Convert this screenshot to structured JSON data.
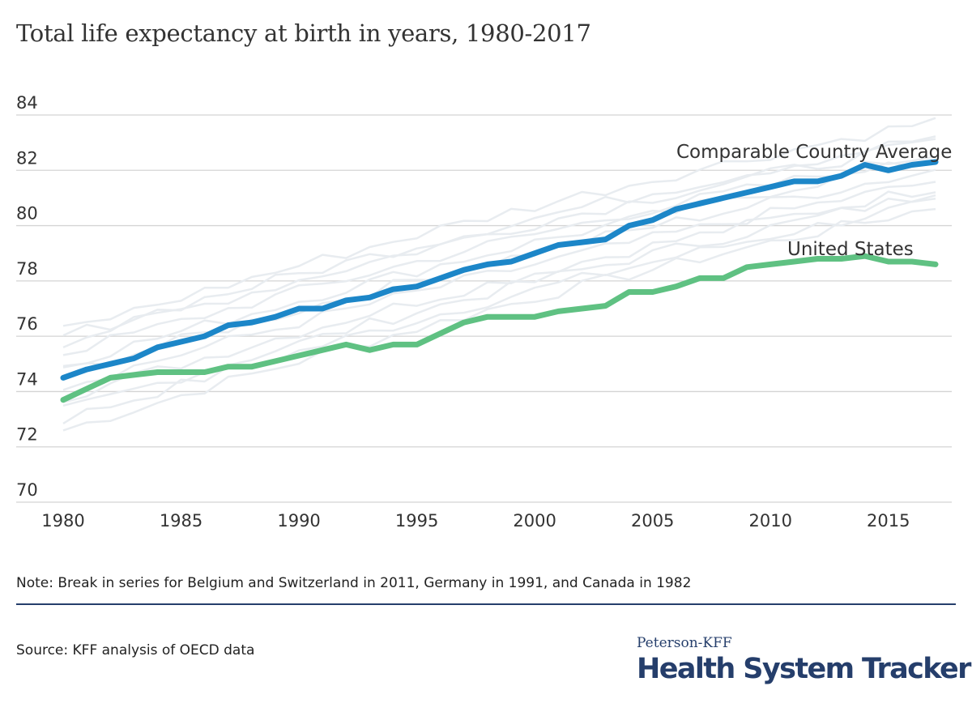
{
  "colors": {
    "comparable": "#1c86c8",
    "us": "#5fc182",
    "other_countries": "#e8ecf0",
    "grid": "#d4d4d4",
    "brand": "#253e6b"
  },
  "footer": {
    "note": "Note: Break in series for Belgium and Switzerland in 2011, Germany in 1991, and Canada in 1982",
    "source": "Source: KFF analysis of OECD data",
    "brand_top": "Peterson-KFF",
    "brand_main": "Health System Tracker"
  },
  "chart_data": {
    "type": "line",
    "title": "Total life expectancy at birth in years, 1980-2017",
    "xlabel": "",
    "ylabel": "",
    "x": [
      1980,
      1981,
      1982,
      1983,
      1984,
      1985,
      1986,
      1987,
      1988,
      1989,
      1990,
      1991,
      1992,
      1993,
      1994,
      1995,
      1996,
      1997,
      1998,
      1999,
      2000,
      2001,
      2002,
      2003,
      2004,
      2005,
      2006,
      2007,
      2008,
      2009,
      2010,
      2011,
      2012,
      2013,
      2014,
      2015,
      2016,
      2017
    ],
    "xlim": [
      1980,
      2017
    ],
    "ylim": [
      70,
      84
    ],
    "x_ticks": [
      "1980",
      "1985",
      "1990",
      "1995",
      "2000",
      "2005",
      "2010",
      "2015"
    ],
    "y_ticks": [
      "70",
      "72",
      "74",
      "76",
      "78",
      "80",
      "82",
      "84"
    ],
    "grid": true,
    "series": [
      {
        "name": "Comparable Country Average",
        "label": "Comparable Country Average",
        "values": [
          74.5,
          74.8,
          75.0,
          75.2,
          75.6,
          75.8,
          76.0,
          76.4,
          76.5,
          76.7,
          77.0,
          77.0,
          77.3,
          77.4,
          77.7,
          77.8,
          78.1,
          78.4,
          78.6,
          78.7,
          79.0,
          79.3,
          79.4,
          79.5,
          80.0,
          80.2,
          80.6,
          80.8,
          81.0,
          81.2,
          81.4,
          81.6,
          81.6,
          81.8,
          82.2,
          82.0,
          82.2,
          82.3
        ]
      },
      {
        "name": "United States",
        "label": "United States",
        "values": [
          73.7,
          74.1,
          74.5,
          74.6,
          74.7,
          74.7,
          74.7,
          74.9,
          74.9,
          75.1,
          75.3,
          75.5,
          75.7,
          75.5,
          75.7,
          75.7,
          76.1,
          76.5,
          76.7,
          76.7,
          76.7,
          76.9,
          77.0,
          77.1,
          77.6,
          77.6,
          77.8,
          78.1,
          78.1,
          78.5,
          78.6,
          78.7,
          78.8,
          78.8,
          78.9,
          78.7,
          78.7,
          78.6
        ]
      }
    ],
    "background_series_count": 11
  }
}
